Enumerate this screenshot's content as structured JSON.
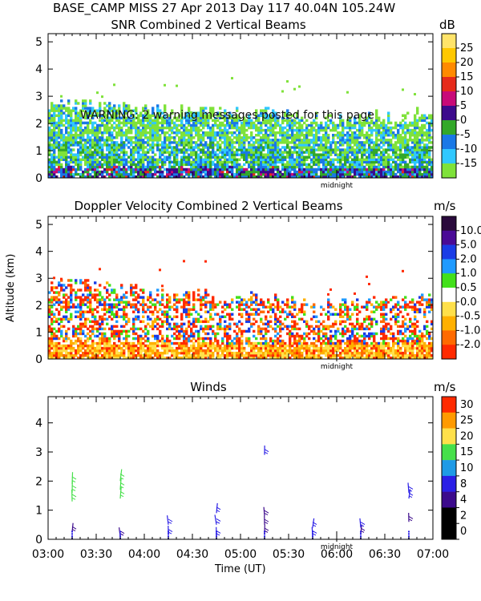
{
  "header": "BASE_CAMP MISS  27 Apr 2013 Day 117 40.04N 105.24W",
  "warning": "WARNING: 2 warning messages posted for this page",
  "ylabel": "Altitude (km)",
  "xlabel": "Time (UT)",
  "midnight_label": "midnight",
  "x_ticks": [
    "03:00",
    "03:30",
    "04:00",
    "04:30",
    "05:00",
    "05:30",
    "06:00",
    "06:30",
    "07:00"
  ],
  "colors": {
    "snr": [
      "#7fe23a",
      "#30c8ff",
      "#1a78e6",
      "#33a82a",
      "#3c0a8c",
      "#c80a78",
      "#e62a1a",
      "#ff8a00",
      "#ffc800",
      "#ffe46a"
    ],
    "dop": [
      "#ff2a00",
      "#ff6a00",
      "#ffb000",
      "#ffe04a",
      "#ffffff",
      "#42e01a",
      "#1e9aff",
      "#1a3ce6",
      "#4a0a96",
      "#2a0a3c"
    ],
    "wind": [
      "#000000",
      "#3c0a8c",
      "#2a1ee6",
      "#1e9ae6",
      "#46e04a",
      "#46e04a",
      "#ffe04a",
      "#ff9a00",
      "#ff2a00"
    ]
  },
  "chart_data": [
    {
      "type": "heatmap",
      "title": "SNR Combined 2 Vertical Beams",
      "unit": "dB",
      "xlim": [
        "03:00",
        "07:00"
      ],
      "ylim": [
        0,
        5.3
      ],
      "y_ticks": [
        0,
        1,
        2,
        3,
        4,
        5
      ],
      "colorbar_ticks": [
        25,
        20,
        15,
        10,
        5,
        0,
        -5,
        -10,
        -15
      ],
      "echo_top_km": [
        2.7,
        2.8,
        2.8,
        2.6,
        2.5,
        2.5,
        2.4,
        2.4,
        2.5,
        2.4,
        2.3,
        2.4,
        2.3,
        2.2,
        2.1,
        2.1,
        2.2,
        2.3,
        2.2,
        2.3,
        2.3
      ],
      "echo_top_hours": [
        3.0,
        3.2,
        3.4,
        3.6,
        3.8,
        4.0,
        4.2,
        4.4,
        4.6,
        4.8,
        5.0,
        5.2,
        5.4,
        5.6,
        5.8,
        6.0,
        6.2,
        6.4,
        6.6,
        6.8,
        7.0
      ]
    },
    {
      "type": "heatmap",
      "title": "Doppler Velocity Combined 2 Vertical Beams",
      "unit": "m/s",
      "xlim": [
        "03:00",
        "07:00"
      ],
      "ylim": [
        0,
        5.3
      ],
      "y_ticks": [
        0,
        1,
        2,
        3,
        4,
        5
      ],
      "colorbar_ticks": [
        "10.0",
        "5.0",
        "2.0",
        "1.0",
        "0.5",
        "0.0",
        "-0.5",
        "-1.0",
        "-2.0"
      ],
      "echo_top_km": [
        2.8,
        2.8,
        2.7,
        2.6,
        2.6,
        2.5,
        2.4,
        2.3,
        2.3,
        2.2,
        2.3,
        2.2,
        2.2,
        2.1,
        2.0,
        2.0,
        2.1,
        2.2,
        2.1,
        2.2,
        2.3
      ],
      "echo_top_hours": [
        3.0,
        3.2,
        3.4,
        3.6,
        3.8,
        4.0,
        4.2,
        4.4,
        4.6,
        4.8,
        5.0,
        5.2,
        5.4,
        5.6,
        5.8,
        6.0,
        6.2,
        6.4,
        6.6,
        6.8,
        7.0
      ]
    },
    {
      "type": "scatter",
      "title": "Winds",
      "unit": "m/s",
      "xlim": [
        "03:00",
        "07:00"
      ],
      "ylim": [
        0,
        4.9
      ],
      "y_ticks": [
        0,
        1,
        2,
        3,
        4
      ],
      "colorbar_ticks": [
        30,
        25,
        20,
        15,
        10,
        8,
        4,
        2,
        0
      ],
      "profiles_hours": [
        3.25,
        3.75,
        4.25,
        4.75,
        5.25,
        5.75,
        6.25,
        6.75
      ],
      "barbs": [
        {
          "t": 3.25,
          "alt": 0.25,
          "speed": 3
        },
        {
          "t": 3.25,
          "alt": 1.3,
          "speed": 12
        },
        {
          "t": 3.25,
          "alt": 1.6,
          "speed": 12
        },
        {
          "t": 3.25,
          "alt": 1.9,
          "speed": 12
        },
        {
          "t": 3.75,
          "alt": 0.1,
          "speed": 3
        },
        {
          "t": 3.75,
          "alt": 1.4,
          "speed": 12
        },
        {
          "t": 3.75,
          "alt": 1.7,
          "speed": 12
        },
        {
          "t": 3.75,
          "alt": 2.0,
          "speed": 12
        },
        {
          "t": 4.25,
          "alt": 0.15,
          "speed": 4
        },
        {
          "t": 4.25,
          "alt": 0.5,
          "speed": 4
        },
        {
          "t": 4.75,
          "alt": 0.1,
          "speed": 4
        },
        {
          "t": 4.75,
          "alt": 0.5,
          "speed": 6
        },
        {
          "t": 4.75,
          "alt": 0.9,
          "speed": 6
        },
        {
          "t": 5.25,
          "alt": 0.2,
          "speed": 3
        },
        {
          "t": 5.25,
          "alt": 0.5,
          "speed": 3
        },
        {
          "t": 5.25,
          "alt": 0.8,
          "speed": 3
        },
        {
          "t": 5.25,
          "alt": 2.9,
          "speed": 4
        },
        {
          "t": 5.75,
          "alt": 0.1,
          "speed": 4
        },
        {
          "t": 5.75,
          "alt": 0.4,
          "speed": 4
        },
        {
          "t": 6.25,
          "alt": 0.2,
          "speed": 3
        },
        {
          "t": 6.25,
          "alt": 0.4,
          "speed": 4
        },
        {
          "t": 6.75,
          "alt": 0.6,
          "speed": 3
        },
        {
          "t": 6.75,
          "alt": 1.4,
          "speed": 4
        },
        {
          "t": 6.75,
          "alt": 1.6,
          "speed": 6
        }
      ]
    }
  ]
}
